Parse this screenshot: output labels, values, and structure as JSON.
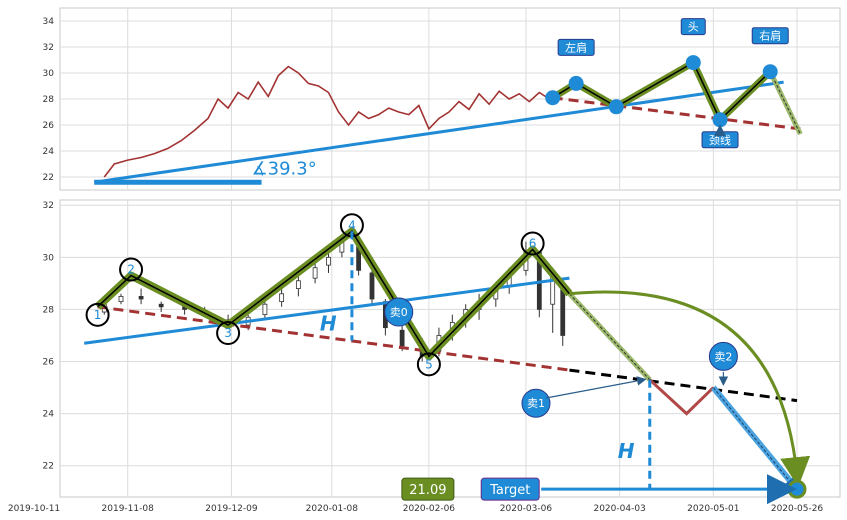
{
  "chart_data": [
    {
      "type": "line",
      "panel": "top",
      "ylim": [
        21,
        35
      ],
      "yticks": [
        22,
        24,
        26,
        28,
        30,
        32,
        34
      ],
      "grid": true,
      "price_series": [
        [
          "2019-11-01",
          22.0
        ],
        [
          "2019-11-04",
          23.0
        ],
        [
          "2019-11-08",
          23.3
        ],
        [
          "2019-11-12",
          23.5
        ],
        [
          "2019-11-16",
          23.8
        ],
        [
          "2019-11-20",
          24.2
        ],
        [
          "2019-11-24",
          24.8
        ],
        [
          "2019-11-28",
          25.6
        ],
        [
          "2019-12-02",
          26.5
        ],
        [
          "2019-12-05",
          28.0
        ],
        [
          "2019-12-08",
          27.3
        ],
        [
          "2019-12-11",
          28.5
        ],
        [
          "2019-12-14",
          28.0
        ],
        [
          "2019-12-17",
          29.3
        ],
        [
          "2019-12-20",
          28.2
        ],
        [
          "2019-12-23",
          29.8
        ],
        [
          "2019-12-26",
          30.5
        ],
        [
          "2019-12-29",
          30.0
        ],
        [
          "2020-01-01",
          29.2
        ],
        [
          "2020-01-04",
          29.0
        ],
        [
          "2020-01-07",
          28.5
        ],
        [
          "2020-01-10",
          27.0
        ],
        [
          "2020-01-13",
          26.0
        ],
        [
          "2020-01-16",
          27.0
        ],
        [
          "2020-01-19",
          26.5
        ],
        [
          "2020-01-22",
          26.8
        ],
        [
          "2020-01-25",
          27.3
        ],
        [
          "2020-01-28",
          27.0
        ],
        [
          "2020-01-31",
          26.8
        ],
        [
          "2020-02-03",
          27.5
        ],
        [
          "2020-02-06",
          25.7
        ],
        [
          "2020-02-09",
          26.5
        ],
        [
          "2020-02-12",
          27.0
        ],
        [
          "2020-02-15",
          27.8
        ],
        [
          "2020-02-18",
          27.2
        ],
        [
          "2020-02-21",
          28.4
        ],
        [
          "2020-02-24",
          27.6
        ],
        [
          "2020-02-27",
          28.6
        ],
        [
          "2020-03-01",
          28.0
        ],
        [
          "2020-03-04",
          28.4
        ],
        [
          "2020-03-07",
          27.8
        ],
        [
          "2020-03-10",
          28.5
        ],
        [
          "2020-03-13",
          28.0
        ]
      ],
      "pattern": {
        "points": [
          [
            "2020-03-14",
            28.1
          ],
          [
            "2020-03-21",
            29.2
          ],
          [
            "2020-04-02",
            27.4
          ],
          [
            "2020-04-25",
            30.8
          ],
          [
            "2020-05-03",
            26.4
          ],
          [
            "2020-05-18",
            30.1
          ],
          [
            "2020-05-27",
            25.3
          ]
        ],
        "labels": [
          {
            "text": "左肩",
            "point": 1
          },
          {
            "text": "头",
            "point": 3
          },
          {
            "text": "右肩",
            "point": 5
          },
          {
            "text": "颈线",
            "point": 4
          }
        ]
      },
      "trend_line": [
        [
          "2019-10-29",
          21.6
        ],
        [
          "2020-05-22",
          29.3
        ]
      ],
      "neckline": [
        [
          "2020-03-14",
          28.1
        ],
        [
          "2020-05-27",
          25.7
        ]
      ],
      "angle_label": "∡39.3°",
      "colors": {
        "price": "#a33333",
        "trend": "#1f8ad6",
        "pattern": "#6b8e23",
        "neckline": "#a33333"
      }
    },
    {
      "type": "candlestick",
      "panel": "bottom",
      "ylim": [
        20.8,
        32.2
      ],
      "yticks": [
        22,
        24,
        26,
        28,
        30,
        32
      ],
      "x_ticks": [
        "2019-10-11",
        "2019-11-08",
        "2019-12-09",
        "2020-01-08",
        "2020-02-06",
        "2020-03-06",
        "2020-04-03",
        "2020-05-01",
        "2020-05-26"
      ],
      "grid": true,
      "candles": [
        [
          "2019-11-01",
          27.9,
          28.3,
          27.8,
          28.2
        ],
        [
          "2019-11-06",
          28.3,
          28.6,
          28.2,
          28.5
        ],
        [
          "2019-11-12",
          28.5,
          28.8,
          28.2,
          28.4
        ],
        [
          "2019-11-18",
          28.2,
          28.3,
          27.9,
          28.1
        ],
        [
          "2019-11-25",
          28.1,
          28.2,
          27.8,
          28.0
        ],
        [
          "2019-12-01",
          27.9,
          28.1,
          27.7,
          27.8
        ],
        [
          "2019-12-08",
          27.6,
          27.8,
          27.3,
          27.4
        ],
        [
          "2019-12-14",
          27.4,
          27.8,
          27.2,
          27.7
        ],
        [
          "2019-12-19",
          27.8,
          28.4,
          27.6,
          28.2
        ],
        [
          "2019-12-24",
          28.3,
          28.9,
          28.1,
          28.6
        ],
        [
          "2019-12-29",
          28.8,
          29.3,
          28.5,
          29.1
        ],
        [
          "2020-01-03",
          29.2,
          29.8,
          29.0,
          29.6
        ],
        [
          "2020-01-07",
          29.7,
          30.3,
          29.4,
          30.0
        ],
        [
          "2020-01-11",
          30.2,
          30.9,
          30.0,
          30.6
        ],
        [
          "2020-01-16",
          30.5,
          30.6,
          29.3,
          29.5
        ],
        [
          "2020-01-20",
          29.4,
          29.5,
          28.2,
          28.4
        ],
        [
          "2020-01-24",
          28.3,
          28.4,
          27.0,
          27.3
        ],
        [
          "2020-01-29",
          27.2,
          27.4,
          26.4,
          26.6
        ],
        [
          "2020-02-04",
          26.6,
          26.9,
          26.0,
          26.2
        ],
        [
          "2020-02-09",
          26.4,
          27.3,
          26.2,
          27.0
        ],
        [
          "2020-02-13",
          27.0,
          27.8,
          26.8,
          27.5
        ],
        [
          "2020-02-17",
          27.6,
          28.2,
          27.3,
          28.0
        ],
        [
          "2020-02-21",
          28.0,
          28.6,
          27.6,
          28.3
        ],
        [
          "2020-02-26",
          28.4,
          29.0,
          28.1,
          28.8
        ],
        [
          "2020-03-01",
          28.9,
          29.6,
          28.6,
          29.4
        ],
        [
          "2020-03-06",
          29.5,
          30.6,
          29.3,
          30.2
        ],
        [
          "2020-03-10",
          30.2,
          30.1,
          27.7,
          28.0
        ],
        [
          "2020-03-14",
          28.2,
          29.6,
          27.1,
          29.3
        ],
        [
          "2020-03-17",
          29.0,
          29.2,
          26.6,
          27.0
        ]
      ],
      "pattern": {
        "points": [
          [
            "2019-10-30",
            28.1
          ],
          [
            "2019-11-09",
            29.3
          ],
          [
            "2019-12-08",
            27.4
          ],
          [
            "2020-01-14",
            31.0
          ],
          [
            "2020-02-06",
            26.2
          ],
          [
            "2020-03-08",
            30.3
          ],
          [
            "2020-03-19",
            28.6
          ],
          [
            "2020-04-26",
            25.0
          ]
        ],
        "circle_labels": [
          "1",
          "2",
          "3",
          "4",
          "5",
          "6"
        ]
      },
      "trend_line": [
        [
          "2019-10-26",
          26.7
        ],
        [
          "2020-03-19",
          29.2
        ]
      ],
      "neckline": [
        [
          "2019-10-30",
          28.1
        ],
        [
          "2020-05-26",
          24.5
        ]
      ],
      "projections": {
        "arc_end": [
          "2020-05-26",
          21.1
        ],
        "red_zigzag": [
          [
            "2020-04-12",
            25.3
          ],
          [
            "2020-04-23",
            24.0
          ],
          [
            "2020-05-01",
            25.0
          ]
        ],
        "blue_leg": [
          [
            "2020-05-01",
            25.0
          ],
          [
            "2020-05-26",
            21.1
          ]
        ],
        "h_measure": {
          "label": "H",
          "from": [
            "2020-01-14",
            31.0
          ],
          "to": [
            "2020-01-14",
            26.8
          ]
        },
        "h_target": {
          "label": "H",
          "x": "2020-04-12",
          "from": 25.3,
          "to": 21.1
        }
      },
      "annotations": {
        "sell0": "卖0",
        "sell1": "卖1",
        "sell2": "卖2",
        "target_label": "Target",
        "target_value": "21.09"
      },
      "colors": {
        "pattern": "#6b8e23",
        "trend": "#1f8ad6",
        "neckline": "#a33333",
        "extension": "#000000"
      }
    }
  ]
}
